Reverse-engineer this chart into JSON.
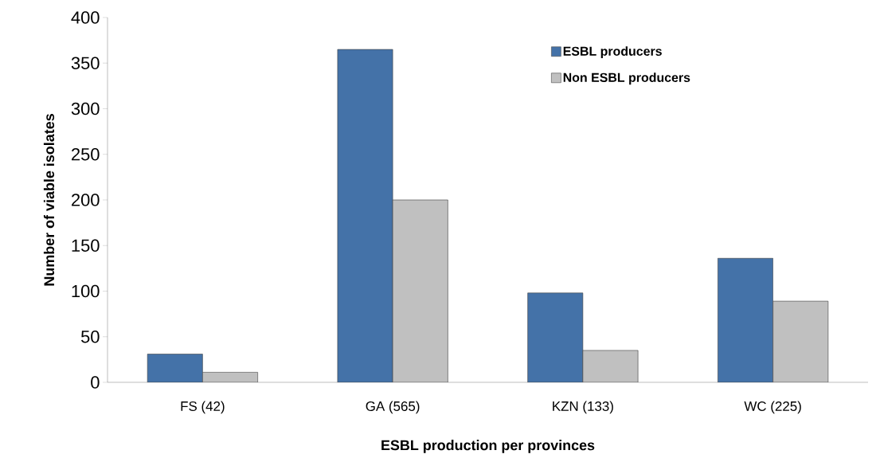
{
  "chart_data": {
    "type": "bar",
    "xlabel": "ESBL production per provinces",
    "ylabel": "Number of viable isolates",
    "categories": [
      "FS (42)",
      "GA (565)",
      "KZN (133)",
      "WC (225)"
    ],
    "series": [
      {
        "name": "ESBL producers",
        "color": "#4472a8",
        "values": [
          31,
          365,
          98,
          136
        ]
      },
      {
        "name": "Non ESBL producers",
        "color": "#c0c0c0",
        "values": [
          11,
          200,
          35,
          89
        ]
      }
    ],
    "ylim": [
      0,
      400
    ],
    "yticks": [
      0,
      50,
      100,
      150,
      200,
      250,
      300,
      350,
      400
    ],
    "grid": false,
    "legend": "top right"
  }
}
